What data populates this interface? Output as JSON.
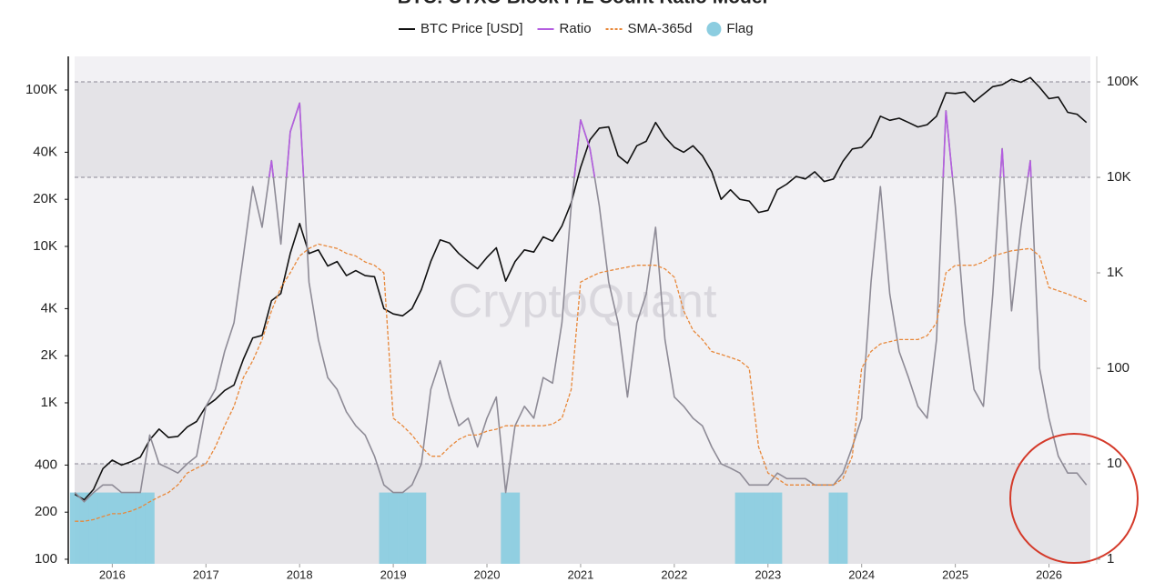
{
  "chart_data": {
    "type": "line",
    "title": "BTC: UTXO Block P/L Count Ratio Model",
    "watermark": "CryptoQuant",
    "x": [
      2015.6,
      2015.7,
      2015.8,
      2015.9,
      2016.0,
      2016.1,
      2016.2,
      2016.3,
      2016.4,
      2016.5,
      2016.6,
      2016.7,
      2016.8,
      2016.9,
      2017.0,
      2017.1,
      2017.2,
      2017.3,
      2017.4,
      2017.5,
      2017.6,
      2017.7,
      2017.8,
      2017.9,
      2018.0,
      2018.1,
      2018.2,
      2018.3,
      2018.4,
      2018.5,
      2018.6,
      2018.7,
      2018.8,
      2018.9,
      2019.0,
      2019.1,
      2019.2,
      2019.3,
      2019.4,
      2019.5,
      2019.6,
      2019.7,
      2019.8,
      2019.9,
      2020.0,
      2020.1,
      2020.2,
      2020.3,
      2020.4,
      2020.5,
      2020.6,
      2020.7,
      2020.8,
      2020.9,
      2021.0,
      2021.1,
      2021.2,
      2021.3,
      2021.4,
      2021.5,
      2021.6,
      2021.7,
      2021.8,
      2021.9,
      2022.0,
      2022.1,
      2022.2,
      2022.3,
      2022.4,
      2022.5,
      2022.6,
      2022.7,
      2022.8,
      2022.9,
      2023.0,
      2023.1,
      2023.2,
      2023.3,
      2023.4,
      2023.5,
      2023.6,
      2023.7,
      2023.8,
      2023.9,
      2024.0,
      2024.1,
      2024.2,
      2024.3,
      2024.4,
      2024.5,
      2024.6,
      2024.7,
      2024.8,
      2024.9,
      2025.0,
      2025.1,
      2025.2,
      2025.3,
      2025.4,
      2025.5,
      2025.6,
      2025.7,
      2025.8,
      2025.9,
      2026.0,
      2026.1,
      2026.2,
      2026.3,
      2026.4
    ],
    "series": [
      {
        "name": "BTC Price [USD]",
        "color": "#111111",
        "axis": "y",
        "style": "solid",
        "values": [
          260,
          240,
          280,
          380,
          430,
          400,
          420,
          450,
          580,
          680,
          600,
          610,
          700,
          760,
          950,
          1050,
          1200,
          1300,
          1900,
          2600,
          2700,
          4500,
          5000,
          9000,
          14000,
          9000,
          9500,
          7500,
          8000,
          6500,
          7000,
          6500,
          6400,
          4000,
          3700,
          3600,
          4000,
          5300,
          8000,
          11000,
          10500,
          9000,
          8000,
          7200,
          8500,
          9800,
          6000,
          8000,
          9500,
          9200,
          11500,
          10800,
          13500,
          19000,
          32000,
          48000,
          57000,
          58000,
          38000,
          34000,
          44000,
          47000,
          62000,
          50000,
          43000,
          40000,
          44000,
          38000,
          30000,
          20000,
          23000,
          20000,
          19500,
          16500,
          17000,
          23000,
          25000,
          28000,
          27000,
          30000,
          26000,
          27000,
          35000,
          42000,
          43000,
          50000,
          68000,
          64000,
          66000,
          62000,
          58000,
          60000,
          68000,
          96000,
          95000,
          97000,
          84000,
          94000,
          105000,
          108000,
          117000,
          112000,
          120000,
          104000,
          88000,
          90000,
          72000,
          70000,
          62000
        ]
      },
      {
        "name": "Ratio",
        "color": "#b45ee0",
        "base_color": "#8e8b96",
        "axis": "y2",
        "style": "solid",
        "highlight_above": 10000,
        "values": [
          5,
          4,
          5,
          6,
          6,
          5,
          5,
          5,
          20,
          10,
          9,
          8,
          10,
          12,
          40,
          60,
          150,
          300,
          1500,
          8000,
          3000,
          15000,
          2000,
          30000,
          60000,
          800,
          200,
          80,
          60,
          35,
          25,
          20,
          12,
          6,
          5,
          5,
          6,
          10,
          60,
          120,
          50,
          25,
          30,
          15,
          30,
          50,
          5,
          25,
          40,
          30,
          80,
          70,
          300,
          5000,
          40000,
          20000,
          5000,
          800,
          300,
          50,
          300,
          600,
          3000,
          200,
          50,
          40,
          30,
          25,
          15,
          10,
          9,
          8,
          6,
          6,
          6,
          8,
          7,
          7,
          7,
          6,
          6,
          6,
          8,
          15,
          30,
          800,
          8000,
          600,
          150,
          80,
          40,
          30,
          200,
          50000,
          5000,
          300,
          60,
          40,
          600,
          20000,
          400,
          3000,
          15000,
          100,
          30,
          12,
          8,
          8,
          6
        ]
      },
      {
        "name": "SMA-365d",
        "color": "#e8883a",
        "axis": "y2",
        "style": "dashed",
        "values": [
          2.5,
          2.5,
          2.6,
          2.8,
          3,
          3,
          3.2,
          3.5,
          4,
          4.5,
          5,
          6,
          8,
          9,
          10,
          15,
          25,
          40,
          80,
          120,
          200,
          400,
          700,
          1000,
          1500,
          1800,
          2000,
          1900,
          1800,
          1600,
          1500,
          1300,
          1200,
          1000,
          30,
          25,
          20,
          15,
          12,
          12,
          15,
          18,
          20,
          20,
          22,
          23,
          25,
          25,
          25,
          25,
          25,
          26,
          30,
          60,
          800,
          900,
          1000,
          1050,
          1100,
          1150,
          1200,
          1200,
          1200,
          1100,
          900,
          400,
          250,
          200,
          150,
          140,
          130,
          120,
          100,
          15,
          8,
          7,
          6,
          6,
          6,
          6,
          6,
          6,
          7,
          12,
          100,
          150,
          180,
          190,
          200,
          200,
          200,
          220,
          300,
          1000,
          1200,
          1200,
          1200,
          1300,
          1500,
          1600,
          1700,
          1750,
          1800,
          1500,
          700,
          650,
          600,
          550,
          500
        ]
      },
      {
        "name": "Flag",
        "color": "#8ccde0",
        "axis": "y2",
        "style": "bar",
        "values": [
          5,
          5,
          5,
          5,
          5,
          5,
          5,
          5,
          5,
          null,
          null,
          null,
          null,
          null,
          null,
          null,
          null,
          null,
          null,
          null,
          null,
          null,
          null,
          null,
          null,
          null,
          null,
          null,
          null,
          null,
          null,
          null,
          null,
          5,
          5,
          5,
          5,
          5,
          null,
          null,
          null,
          null,
          null,
          null,
          null,
          null,
          5,
          5,
          null,
          null,
          null,
          null,
          null,
          null,
          null,
          null,
          null,
          null,
          null,
          null,
          null,
          null,
          null,
          null,
          null,
          null,
          null,
          null,
          null,
          null,
          null,
          5,
          5,
          5,
          5,
          5,
          null,
          null,
          null,
          null,
          null,
          5,
          5,
          null,
          null,
          null,
          null,
          null,
          null,
          null,
          null,
          null,
          null,
          null,
          null,
          null,
          null,
          null,
          null,
          null,
          null,
          null,
          null,
          null,
          null,
          null,
          null,
          null,
          null
        ]
      }
    ],
    "xlim": [
      2015.54,
      2026.5
    ],
    "xticks": [
      2016,
      2017,
      2018,
      2019,
      2020,
      2021,
      2022,
      2023,
      2024,
      2025,
      2026
    ],
    "ylog": true,
    "ylim": [
      93.5,
      164000
    ],
    "yticks": [
      100,
      200,
      400,
      {
        "value": 1000,
        "label": "1K"
      },
      {
        "value": 2000,
        "label": "2K"
      },
      {
        "value": 4000,
        "label": "4K"
      },
      {
        "value": 10000,
        "label": "10K"
      },
      {
        "value": 20000,
        "label": "20K"
      },
      {
        "value": 40000,
        "label": "40K"
      },
      {
        "value": 100000,
        "label": "100K"
      }
    ],
    "y2log": true,
    "y2lim": [
      0.896,
      185000
    ],
    "y2ticks": [
      1,
      10,
      100,
      {
        "value": 1000,
        "label": "1K"
      },
      {
        "value": 10000,
        "label": "10K"
      },
      {
        "value": 100000,
        "label": "100K"
      }
    ],
    "thresholds": [
      10,
      10000,
      100000
    ],
    "legend": "top"
  }
}
